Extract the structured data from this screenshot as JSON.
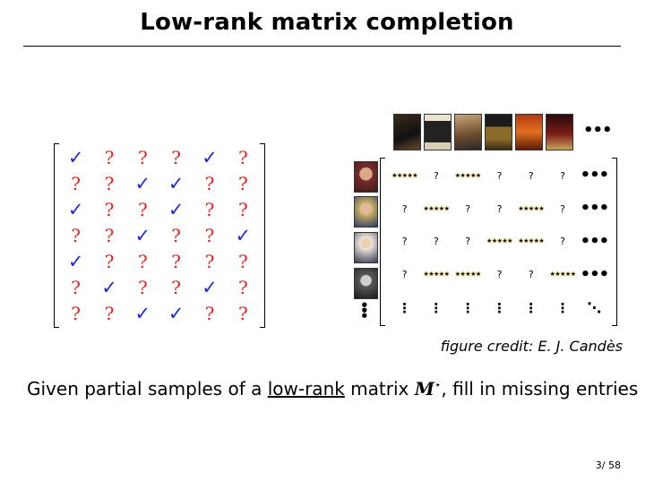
{
  "slide": {
    "title": "Low-rank matrix completion",
    "credit": "figure credit:  E. J. Candès",
    "caption_pre": "Given partial samples of a ",
    "caption_link": "low-rank",
    "caption_mid": " matrix ",
    "caption_math": "M",
    "caption_sup": "⋆",
    "caption_post": ", fill in missing entries",
    "page": "3/ 58"
  },
  "left_matrix": [
    [
      "✓",
      "?",
      "?",
      "?",
      "✓",
      "?"
    ],
    [
      "?",
      "?",
      "✓",
      "✓",
      "?",
      "?"
    ],
    [
      "✓",
      "?",
      "?",
      "✓",
      "?",
      "?"
    ],
    [
      "?",
      "?",
      "✓",
      "?",
      "?",
      "✓"
    ],
    [
      "✓",
      "?",
      "?",
      "?",
      "?",
      "?"
    ],
    [
      "?",
      "✓",
      "?",
      "?",
      "✓",
      "?"
    ],
    [
      "?",
      "?",
      "✓",
      "✓",
      "?",
      "?"
    ]
  ],
  "right_matrix": [
    [
      "★★★★★",
      "?",
      "★★★★★",
      "?",
      "?",
      "?",
      "•••"
    ],
    [
      "?",
      "★★★★★",
      "?",
      "?",
      "★★★★★",
      "?",
      "•••"
    ],
    [
      "?",
      "?",
      "?",
      "★★★★★",
      "★★★★★",
      "?",
      "•••"
    ],
    [
      "?",
      "★★★★★",
      "★★★★★",
      "?",
      "?",
      "★★★★★",
      "•••"
    ],
    [
      "⋮",
      "⋮",
      "⋮",
      "⋮",
      "⋮",
      "⋮",
      "⋱"
    ]
  ],
  "colors": {
    "check": "#1a2bd8",
    "question": "#e32222",
    "star_glow": "#e8d03a"
  },
  "icons": {
    "movie_posters": [
      "poster-1",
      "poster-2",
      "poster-3",
      "poster-4",
      "poster-5",
      "poster-6"
    ],
    "user_photos": [
      "user-1",
      "user-2",
      "user-3",
      "user-4"
    ]
  },
  "ellipsis": "•••"
}
